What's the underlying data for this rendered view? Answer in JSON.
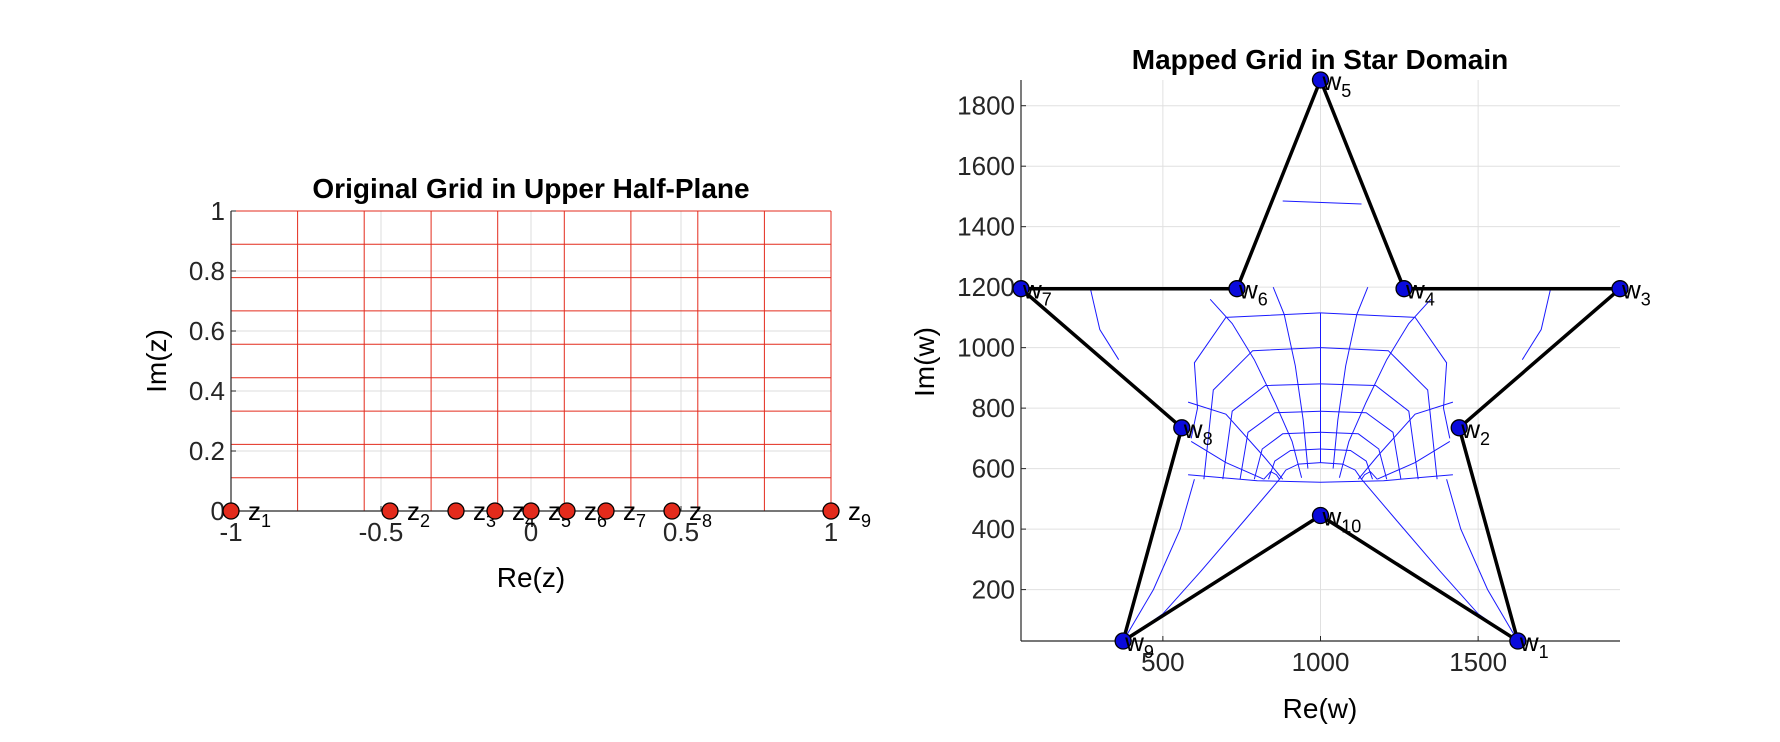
{
  "chart_data": [
    {
      "type": "line",
      "title": "Original Grid in Upper Half-Plane",
      "xlabel": "Re(z)",
      "ylabel": "Im(z)",
      "xlim": [
        -1,
        1
      ],
      "ylim": [
        0,
        1
      ],
      "xticks": [
        {
          "value": -1,
          "label": "-1"
        },
        {
          "value": -0.5,
          "label": "-0.5"
        },
        {
          "value": 0,
          "label": "0"
        },
        {
          "value": 0.5,
          "label": "0.5"
        },
        {
          "value": 1,
          "label": "1"
        }
      ],
      "yticks": [
        {
          "value": 0,
          "label": "0"
        },
        {
          "value": 0.2,
          "label": "0.2"
        },
        {
          "value": 0.4,
          "label": "0.4"
        },
        {
          "value": 0.6,
          "label": "0.6"
        },
        {
          "value": 0.8,
          "label": "0.8"
        },
        {
          "value": 1,
          "label": "1"
        }
      ],
      "grid": true,
      "grid_color": "#e32b1c",
      "grid_vertical_x": [
        -1,
        -0.778,
        -0.556,
        -0.333,
        -0.111,
        0.111,
        0.333,
        0.556,
        0.778,
        1
      ],
      "grid_horizontal_y": [
        0,
        0.111,
        0.222,
        0.333,
        0.444,
        0.556,
        0.667,
        0.778,
        0.889,
        1
      ],
      "marker_color": "#e32b1c",
      "points": [
        {
          "x": -1.0,
          "base": "z",
          "sub": "1"
        },
        {
          "x": -0.47,
          "base": "z",
          "sub": "2"
        },
        {
          "x": -0.25,
          "base": "z",
          "sub": "3"
        },
        {
          "x": -0.12,
          "base": "z",
          "sub": "4"
        },
        {
          "x": 0.0,
          "base": "z",
          "sub": "5"
        },
        {
          "x": 0.12,
          "base": "z",
          "sub": "6"
        },
        {
          "x": 0.25,
          "base": "z",
          "sub": "7"
        },
        {
          "x": 0.47,
          "base": "z",
          "sub": "8"
        },
        {
          "x": 1.0,
          "base": "z",
          "sub": "9"
        }
      ]
    },
    {
      "type": "line",
      "title": "Mapped Grid in Star Domain",
      "xlabel": "Re(w)",
      "ylabel": "Im(w)",
      "xlim": [
        50,
        1950
      ],
      "ylim": [
        30,
        1885
      ],
      "xticks": [
        {
          "value": 500,
          "label": "500"
        },
        {
          "value": 1000,
          "label": "1000"
        },
        {
          "value": 1500,
          "label": "1500"
        }
      ],
      "yticks": [
        {
          "value": 200,
          "label": "200"
        },
        {
          "value": 400,
          "label": "400"
        },
        {
          "value": 600,
          "label": "600"
        },
        {
          "value": 800,
          "label": "800"
        },
        {
          "value": 1000,
          "label": "1000"
        },
        {
          "value": 1200,
          "label": "1200"
        },
        {
          "value": 1400,
          "label": "1400"
        },
        {
          "value": 1600,
          "label": "1600"
        },
        {
          "value": 1800,
          "label": "1800"
        }
      ],
      "grid": true,
      "outline_color": "#000000",
      "marker_color": "#0a0adb",
      "mapped_grid_color": "#1a1aff",
      "vertices": [
        {
          "x": 1626,
          "y": 30,
          "base": "w",
          "sub": "1"
        },
        {
          "x": 1440,
          "y": 735,
          "base": "w",
          "sub": "2"
        },
        {
          "x": 1950,
          "y": 1195,
          "base": "w",
          "sub": "3"
        },
        {
          "x": 1265,
          "y": 1195,
          "base": "w",
          "sub": "4"
        },
        {
          "x": 1000,
          "y": 1885,
          "base": "w",
          "sub": "5"
        },
        {
          "x": 735,
          "y": 1195,
          "base": "w",
          "sub": "6"
        },
        {
          "x": 50,
          "y": 1195,
          "base": "w",
          "sub": "7"
        },
        {
          "x": 560,
          "y": 735,
          "base": "w",
          "sub": "8"
        },
        {
          "x": 374,
          "y": 30,
          "base": "w",
          "sub": "9"
        },
        {
          "x": 1000,
          "y": 445,
          "base": "w",
          "sub": "10"
        }
      ],
      "mapped_curves": [
        [
          [
            1000,
            620
          ],
          [
            930,
            615
          ],
          [
            890,
            595
          ],
          [
            870,
            565
          ]
        ],
        [
          [
            1130,
            565
          ],
          [
            1110,
            595
          ],
          [
            1070,
            615
          ],
          [
            1000,
            620
          ]
        ],
        [
          [
            1000,
            665
          ],
          [
            905,
            660
          ],
          [
            855,
            625
          ],
          [
            835,
            565
          ]
        ],
        [
          [
            1165,
            565
          ],
          [
            1145,
            625
          ],
          [
            1095,
            660
          ],
          [
            1000,
            665
          ]
        ],
        [
          [
            1000,
            720
          ],
          [
            880,
            715
          ],
          [
            815,
            665
          ],
          [
            790,
            565
          ]
        ],
        [
          [
            1210,
            565
          ],
          [
            1185,
            665
          ],
          [
            1120,
            715
          ],
          [
            1000,
            720
          ]
        ],
        [
          [
            1000,
            790
          ],
          [
            855,
            785
          ],
          [
            770,
            720
          ],
          [
            745,
            565
          ]
        ],
        [
          [
            1255,
            565
          ],
          [
            1230,
            720
          ],
          [
            1145,
            785
          ],
          [
            1000,
            790
          ]
        ],
        [
          [
            1000,
            880
          ],
          [
            825,
            875
          ],
          [
            720,
            790
          ],
          [
            690,
            565
          ]
        ],
        [
          [
            1310,
            565
          ],
          [
            1280,
            790
          ],
          [
            1175,
            875
          ],
          [
            1000,
            880
          ]
        ],
        [
          [
            1000,
            1000
          ],
          [
            785,
            990
          ],
          [
            660,
            860
          ],
          [
            630,
            565
          ]
        ],
        [
          [
            1370,
            565
          ],
          [
            1340,
            860
          ],
          [
            1215,
            990
          ],
          [
            1000,
            1000
          ]
        ],
        [
          [
            1000,
            1115
          ],
          [
            700,
            1100
          ],
          [
            600,
            950
          ],
          [
            610,
            800
          ],
          [
            590,
            700
          ]
        ],
        [
          [
            1410,
            700
          ],
          [
            1390,
            800
          ],
          [
            1400,
            950
          ],
          [
            1300,
            1100
          ],
          [
            1000,
            1115
          ]
        ],
        [
          [
            580,
            820
          ],
          [
            700,
            780
          ],
          [
            820,
            640
          ],
          [
            880,
            565
          ]
        ],
        [
          [
            1120,
            565
          ],
          [
            1180,
            640
          ],
          [
            1300,
            780
          ],
          [
            1420,
            820
          ]
        ],
        [
          [
            590,
            690
          ],
          [
            700,
            620
          ],
          [
            820,
            565
          ]
        ],
        [
          [
            1180,
            565
          ],
          [
            1300,
            620
          ],
          [
            1410,
            690
          ]
        ],
        [
          [
            870,
            565
          ],
          [
            860,
            580
          ],
          [
            842,
            590
          ],
          [
            820,
            565
          ]
        ],
        [
          [
            1130,
            565
          ],
          [
            1140,
            580
          ],
          [
            1158,
            590
          ],
          [
            1180,
            565
          ]
        ],
        [
          [
            940,
            570
          ],
          [
            910,
            690
          ],
          [
            855,
            820
          ],
          [
            790,
            960
          ],
          [
            720,
            1080
          ],
          [
            650,
            1160
          ]
        ],
        [
          [
            1060,
            570
          ],
          [
            1090,
            690
          ],
          [
            1145,
            820
          ],
          [
            1210,
            960
          ],
          [
            1280,
            1080
          ],
          [
            1350,
            1160
          ]
        ],
        [
          [
            960,
            600
          ],
          [
            945,
            760
          ],
          [
            920,
            940
          ],
          [
            885,
            1110
          ],
          [
            850,
            1200
          ]
        ],
        [
          [
            1040,
            600
          ],
          [
            1055,
            760
          ],
          [
            1080,
            940
          ],
          [
            1115,
            1110
          ],
          [
            1150,
            1200
          ]
        ],
        [
          [
            1000,
            620
          ],
          [
            1000,
            1115
          ]
        ],
        [
          [
            580,
            580
          ],
          [
            800,
            560
          ],
          [
            1000,
            555
          ],
          [
            1200,
            560
          ],
          [
            1420,
            580
          ]
        ],
        [
          [
            870,
            565
          ],
          [
            760,
            430
          ],
          [
            620,
            260
          ],
          [
            500,
            120
          ],
          [
            390,
            40
          ]
        ],
        [
          [
            1130,
            565
          ],
          [
            1240,
            430
          ],
          [
            1380,
            260
          ],
          [
            1500,
            120
          ],
          [
            1610,
            40
          ]
        ],
        [
          [
            600,
            565
          ],
          [
            555,
            400
          ],
          [
            470,
            200
          ],
          [
            380,
            40
          ]
        ],
        [
          [
            1400,
            565
          ],
          [
            1445,
            400
          ],
          [
            1530,
            200
          ],
          [
            1620,
            40
          ]
        ],
        [
          [
            360,
            960
          ],
          [
            300,
            1060
          ],
          [
            270,
            1195
          ]
        ],
        [
          [
            1640,
            960
          ],
          [
            1700,
            1060
          ],
          [
            1730,
            1195
          ]
        ],
        [
          [
            880,
            1485
          ],
          [
            1130,
            1475
          ]
        ]
      ]
    }
  ]
}
